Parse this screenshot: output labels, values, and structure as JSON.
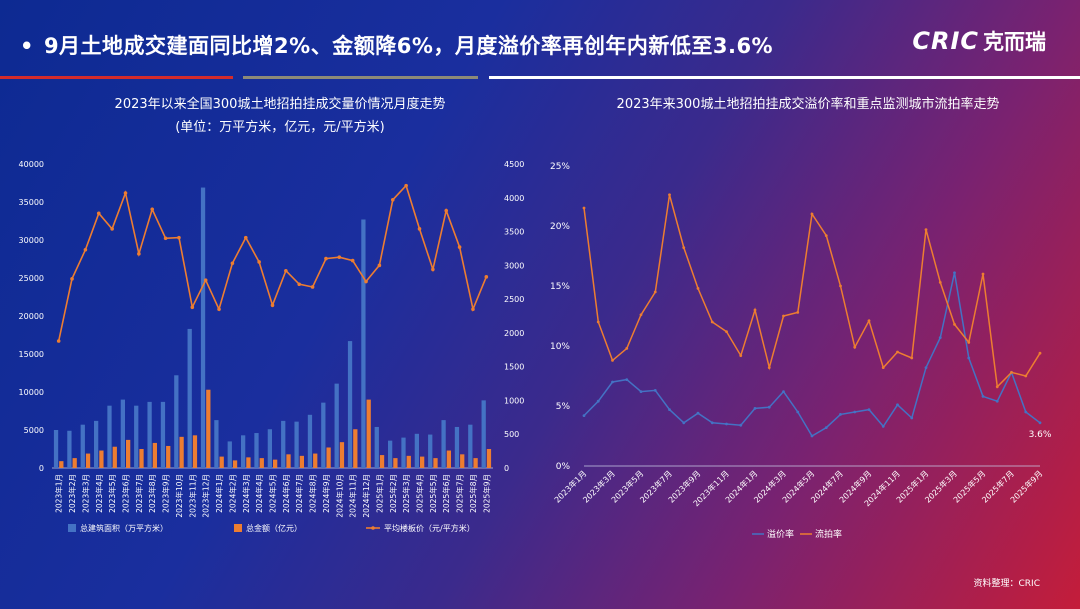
{
  "header": {
    "bullet": "•",
    "title": "9月土地成交建面同比增2%、金额降6%，月度溢价率再创年内新低至3.6%",
    "logo_en": "CRIC",
    "logo_cn": "克而瑞"
  },
  "source": "资料整理：CRIC",
  "colors": {
    "bar_area": "#4472c4",
    "bar_amount": "#ed7d31",
    "line_price": "#ed7d31",
    "line_premium": "#4472c4",
    "line_failure": "#ed7d31"
  },
  "chart_data": [
    {
      "type": "bar+line",
      "title": "2023年以来全国300城土地招拍挂成交量价情况月度走势",
      "subtitle": "(单位：万平方米，亿元，元/平方米)",
      "categories": [
        "2023年1月",
        "2023年2月",
        "2023年3月",
        "2023年4月",
        "2023年5月",
        "2023年6月",
        "2023年7月",
        "2023年8月",
        "2023年9月",
        "2023年10月",
        "2023年11月",
        "2023年12月",
        "2024年1月",
        "2024年2月",
        "2024年3月",
        "2024年4月",
        "2024年5月",
        "2024年6月",
        "2024年7月",
        "2024年8月",
        "2024年9月",
        "2024年10月",
        "2024年11月",
        "2024年12月",
        "2025年1月",
        "2025年2月",
        "2025年3月",
        "2025年4月",
        "2025年5月",
        "2025年6月",
        "2025年7月",
        "2025年8月",
        "2025年9月"
      ],
      "y_left_ticks": [
        "0",
        "5000",
        "10000",
        "15000",
        "20000",
        "25000",
        "30000",
        "35000",
        "40000"
      ],
      "y_right_ticks": [
        "0",
        "500",
        "1000",
        "1500",
        "2000",
        "2500",
        "3000",
        "3500",
        "4000",
        "4500"
      ],
      "ylim_left": [
        0,
        40000
      ],
      "ylim_right": [
        0,
        4500
      ],
      "series": [
        {
          "name": "总建筑面积（万平方米）",
          "type": "bar",
          "axis": "left",
          "values": [
            5000,
            4900,
            5700,
            6200,
            8200,
            9000,
            8200,
            8700,
            8700,
            12200,
            18300,
            36900,
            6300,
            3500,
            4300,
            4600,
            5100,
            6200,
            6100,
            7000,
            8600,
            11100,
            16700,
            32700,
            5400,
            3600,
            4000,
            4500,
            4400,
            6300,
            5400,
            5700,
            8900
          ]
        },
        {
          "name": "总金额（亿元）",
          "type": "bar",
          "axis": "left",
          "values": [
            900,
            1300,
            1900,
            2300,
            2800,
            3700,
            2500,
            3300,
            2900,
            4100,
            4300,
            10300,
            1500,
            1000,
            1400,
            1300,
            1100,
            1800,
            1600,
            1900,
            2700,
            3400,
            5100,
            9000,
            1700,
            1300,
            1600,
            1500,
            1300,
            2300,
            1800,
            1300,
            2500
          ]
        },
        {
          "name": "平均楼板价（元/平方米）",
          "type": "line",
          "axis": "right",
          "values": [
            1880,
            2800,
            3230,
            3770,
            3540,
            4070,
            3170,
            3830,
            3400,
            3410,
            2380,
            2780,
            2350,
            3030,
            3410,
            3050,
            2410,
            2920,
            2720,
            2680,
            3100,
            3120,
            3070,
            2760,
            3000,
            3970,
            4180,
            3540,
            2940,
            3810,
            3270,
            2350,
            2830
          ]
        }
      ],
      "legend_position": "bottom"
    },
    {
      "type": "line",
      "title": "2023年来300城土地招拍挂成交溢价率和重点监测城市流拍率走势",
      "categories": [
        "2023年1月",
        "2023年2月",
        "2023年3月",
        "2023年4月",
        "2023年5月",
        "2023年6月",
        "2023年7月",
        "2023年8月",
        "2023年9月",
        "2023年10月",
        "2023年11月",
        "2023年12月",
        "2024年1月",
        "2024年2月",
        "2024年3月",
        "2024年4月",
        "2024年5月",
        "2024年6月",
        "2024年7月",
        "2024年8月",
        "2024年9月",
        "2024年10月",
        "2024年11月",
        "2024年12月",
        "2025年1月",
        "2025年2月",
        "2025年3月",
        "2025年4月",
        "2025年5月",
        "2025年6月",
        "2025年7月",
        "2025年8月",
        "2025年9月"
      ],
      "x_tick_labels": [
        "2023年1月",
        "2023年3月",
        "2023年5月",
        "2023年7月",
        "2023年9月",
        "2023年11月",
        "2024年1月",
        "2024年3月",
        "2024年5月",
        "2024年7月",
        "2024年9月",
        "2024年11月",
        "2025年1月",
        "2025年3月",
        "2025年5月",
        "2025年7月",
        "2025年9月"
      ],
      "y_ticks": [
        "0%",
        "5%",
        "10%",
        "15%",
        "20%",
        "25%"
      ],
      "ylim": [
        0,
        25
      ],
      "series": [
        {
          "name": "溢价率",
          "values": [
            4.2,
            5.4,
            7.0,
            7.2,
            6.2,
            6.3,
            4.7,
            3.6,
            4.4,
            3.6,
            3.5,
            3.4,
            4.8,
            4.9,
            6.2,
            4.5,
            2.5,
            3.2,
            4.3,
            4.5,
            4.7,
            3.3,
            5.1,
            4.0,
            8.2,
            10.7,
            16.1,
            9.0,
            5.8,
            5.4,
            7.8,
            4.5,
            3.6
          ]
        },
        {
          "name": "流拍率",
          "values": [
            21.5,
            12.0,
            8.8,
            9.8,
            12.6,
            14.5,
            22.6,
            18.2,
            14.8,
            12.0,
            11.2,
            9.2,
            13.0,
            8.2,
            12.5,
            12.8,
            21.0,
            19.2,
            15.0,
            9.9,
            12.1,
            8.2,
            9.5,
            9.0,
            19.7,
            15.3,
            11.8,
            10.3,
            16.0,
            6.6,
            7.8,
            7.5,
            9.4
          ]
        }
      ],
      "end_label": "3.6%",
      "legend_position": "bottom"
    }
  ]
}
